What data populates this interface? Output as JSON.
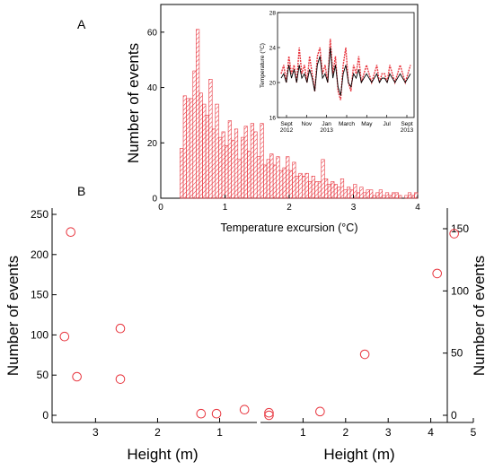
{
  "panels": {
    "a": "A",
    "b": "B"
  },
  "chart_data": [
    {
      "id": "A",
      "type": "bar",
      "xlabel": "Temperature excursion (°C)",
      "ylabel": "Number of events",
      "xlim": [
        0,
        4
      ],
      "ylim": [
        0,
        70
      ],
      "xticks": [
        "0",
        "1",
        "2",
        "3",
        "4"
      ],
      "yticks": [
        "0",
        "20",
        "40",
        "60"
      ],
      "bin_width": 0.05,
      "series": [
        {
          "color": "#e8363f",
          "hatch": "diagonal",
          "x": [
            0.3,
            0.35,
            0.4,
            0.45,
            0.5,
            0.55,
            0.6,
            0.65,
            0.7,
            0.75,
            0.8,
            0.85,
            0.9,
            0.95,
            1.0,
            1.05,
            1.1,
            1.15,
            1.2,
            1.25,
            1.3,
            1.35,
            1.4,
            1.45,
            1.5,
            1.55,
            1.6,
            1.65,
            1.7,
            1.75,
            1.8,
            1.85,
            1.9,
            1.95,
            2.0,
            2.05,
            2.1,
            2.15,
            2.2,
            2.25,
            2.3,
            2.35,
            2.4,
            2.45,
            2.5,
            2.55,
            2.6,
            2.65,
            2.7,
            2.75,
            2.8,
            2.85,
            2.9,
            2.95,
            3.0,
            3.05,
            3.1,
            3.15,
            3.2,
            3.25,
            3.3,
            3.35,
            3.4,
            3.45,
            3.5,
            3.55,
            3.6,
            3.65,
            3.7,
            3.75,
            3.8,
            3.85,
            3.9,
            3.95
          ],
          "values": [
            18,
            37,
            36,
            36,
            46,
            61,
            38,
            34,
            30,
            43,
            25,
            34,
            22,
            24,
            19,
            28,
            21,
            25,
            14,
            22,
            26,
            17,
            27,
            24,
            15,
            27,
            12,
            14,
            16,
            12,
            15,
            10,
            11,
            15,
            10,
            13,
            8,
            9,
            8,
            9,
            6,
            8,
            6,
            6,
            14,
            7,
            5,
            6,
            5,
            4,
            7,
            3,
            4,
            3,
            5,
            2,
            4,
            2,
            3,
            3,
            1,
            2,
            3,
            1,
            2,
            1,
            2,
            2,
            1,
            0,
            1,
            2,
            1,
            2
          ]
        }
      ]
    },
    {
      "id": "A-inset",
      "type": "line",
      "ylabel": "Temperature (°C)",
      "ylim": [
        16,
        28
      ],
      "yticks": [
        "16",
        "20",
        "24",
        "28"
      ],
      "xticks": [
        [
          "Sept",
          "2012"
        ],
        [
          "Nov",
          ""
        ],
        [
          "Jan",
          "2013"
        ],
        [
          "March",
          ""
        ],
        [
          "May",
          ""
        ],
        [
          "Jul",
          ""
        ],
        [
          "Sept",
          "2013"
        ]
      ],
      "series": [
        {
          "color": "#e8363f",
          "x": [
            0,
            0.02,
            0.04,
            0.06,
            0.08,
            0.1,
            0.12,
            0.14,
            0.16,
            0.18,
            0.2,
            0.22,
            0.24,
            0.26,
            0.28,
            0.3,
            0.32,
            0.34,
            0.36,
            0.38,
            0.4,
            0.42,
            0.44,
            0.46,
            0.48,
            0.5,
            0.52,
            0.54,
            0.56,
            0.58,
            0.6,
            0.62,
            0.64,
            0.66,
            0.68,
            0.7,
            0.72,
            0.74,
            0.76,
            0.78,
            0.8,
            0.82,
            0.84,
            0.86,
            0.88,
            0.9,
            0.92,
            0.94,
            0.96,
            0.98,
            1.0
          ],
          "values": [
            21,
            22,
            20,
            23,
            21,
            22,
            20,
            24,
            21,
            22,
            20,
            23,
            21,
            19,
            23,
            24,
            21,
            22,
            20,
            25,
            21,
            23,
            19,
            18,
            22,
            24,
            20,
            19,
            22,
            21,
            23,
            20,
            21,
            22,
            21,
            20,
            21,
            22,
            20,
            21,
            21,
            20,
            22,
            21,
            20,
            21,
            22,
            21,
            20,
            21,
            22
          ]
        },
        {
          "color": "#000000",
          "x": [
            0,
            0.02,
            0.04,
            0.06,
            0.08,
            0.1,
            0.12,
            0.14,
            0.16,
            0.18,
            0.2,
            0.22,
            0.24,
            0.26,
            0.28,
            0.3,
            0.32,
            0.34,
            0.36,
            0.38,
            0.4,
            0.42,
            0.44,
            0.46,
            0.48,
            0.5,
            0.52,
            0.54,
            0.56,
            0.58,
            0.6,
            0.62,
            0.64,
            0.66,
            0.68,
            0.7,
            0.72,
            0.74,
            0.76,
            0.78,
            0.8,
            0.82,
            0.84,
            0.86,
            0.88,
            0.9,
            0.92,
            0.94,
            0.96,
            0.98,
            1.0
          ],
          "values": [
            20.5,
            21,
            20,
            22,
            20.5,
            21.5,
            20,
            22,
            20.5,
            21,
            20,
            21.5,
            20.5,
            19,
            22,
            23,
            20.5,
            21,
            20,
            24,
            20.5,
            22,
            19.5,
            18.5,
            21,
            22,
            20,
            19.5,
            21,
            20.5,
            21.5,
            20,
            20.5,
            21,
            20.5,
            20,
            20.5,
            21,
            20,
            20.5,
            20.5,
            20,
            21,
            20.5,
            20,
            20.5,
            21,
            20.5,
            20,
            20.5,
            21
          ]
        }
      ]
    },
    {
      "id": "B-left",
      "type": "scatter",
      "xlabel": "Height (m)",
      "ylabel": "Number of events",
      "xlim": [
        3.7,
        0.4
      ],
      "ylim": [
        0,
        250
      ],
      "xticks": [
        "3",
        "2",
        "1"
      ],
      "yticks": [
        "0",
        "50",
        "100",
        "150",
        "200",
        "250"
      ],
      "marker": "open-circle",
      "color": "#e8363f",
      "x": [
        3.5,
        3.4,
        3.3,
        2.6,
        2.6,
        1.3,
        1.05,
        0.6
      ],
      "y": [
        98,
        228,
        48,
        108,
        45,
        2,
        2,
        7
      ]
    },
    {
      "id": "B-right",
      "type": "scatter",
      "xlabel": "Height (m)",
      "ylabel": "Number of events",
      "xlim": [
        0,
        5
      ],
      "ylim": [
        -2,
        158
      ],
      "xticks": [
        "1",
        "2",
        "3",
        "4",
        "5"
      ],
      "yticks": [
        "0",
        "50",
        "100",
        "150"
      ],
      "marker": "open-circle",
      "color": "#e8363f",
      "x": [
        0.2,
        0.2,
        1.4,
        2.45,
        4.15,
        4.55
      ],
      "y": [
        2,
        0,
        3,
        49,
        114,
        146
      ]
    }
  ]
}
